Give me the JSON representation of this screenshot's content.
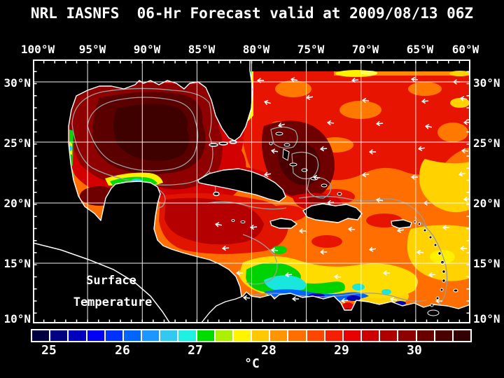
{
  "title": "NRL IASNFS  06-Hr Forecast valid at 2009/08/13 06Z",
  "map_overlay": {
    "line1": "Surface",
    "line2": "Temperature"
  },
  "axes": {
    "lon_labels": [
      "100°W",
      "95°W",
      "90°W",
      "85°W",
      "80°W",
      "75°W",
      "70°W",
      "65°W",
      "60°W"
    ],
    "lat_labels": [
      "30°N",
      "25°N",
      "20°N",
      "15°N",
      "10°N"
    ]
  },
  "colorbar": {
    "unit": "°C",
    "tick_labels": [
      "25",
      "26",
      "27",
      "28",
      "29",
      "30"
    ],
    "colors": [
      "#000041",
      "#000082",
      "#0000BE",
      "#0000F5",
      "#0032FF",
      "#0064FF",
      "#1E96FF",
      "#32C8F0",
      "#1EF0E1",
      "#00DC00",
      "#AAF000",
      "#FFF500",
      "#FFC800",
      "#FF9600",
      "#FF6E00",
      "#FF4600",
      "#F51E00",
      "#E60000",
      "#CD0000",
      "#AF0000",
      "#8C0000",
      "#690000",
      "#4B0000",
      "#320000"
    ]
  },
  "colors": {
    "background": "#000000",
    "grid": "#FFFFFF",
    "coastline": "#FFFFFF",
    "depth_contour": "#9C9C9C",
    "land": "#000000",
    "gulf_core": "#3F0000",
    "atlantic_red": "#E61400",
    "caribbean_orange": "#FF6E00",
    "upwelling_green": "#00DC00"
  }
}
